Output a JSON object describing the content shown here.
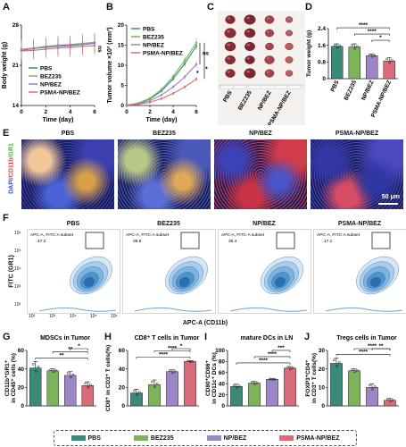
{
  "panel_letters": [
    "A",
    "B",
    "C",
    "D",
    "E",
    "F",
    "G",
    "H",
    "I",
    "J"
  ],
  "colors": {
    "PBS": "#3a8a79",
    "BEZ235": "#7cb35b",
    "NP/BEZ": "#9b86c6",
    "PSMA-NP/BEZ": "#d96b7b"
  },
  "groups": [
    "PBS",
    "BEZ235",
    "NP/BEZ",
    "PSMA-NP/BEZ"
  ],
  "chart_data": [
    {
      "panel": "A",
      "type": "line",
      "xlabel": "Time (day)",
      "ylabel": "Body weight (g)",
      "ylim": [
        14,
        28
      ],
      "yticks": [
        14,
        21,
        28
      ],
      "xticks": [
        0,
        2,
        4,
        6
      ],
      "x": [
        0,
        1,
        2,
        3,
        4,
        5,
        6
      ],
      "series": [
        {
          "name": "PBS",
          "values": [
            23.6,
            23.9,
            24.1,
            24.3,
            24.4,
            24.6,
            24.8
          ]
        },
        {
          "name": "BEZ235",
          "values": [
            23.8,
            24.0,
            24.3,
            24.5,
            24.6,
            24.8,
            25.0
          ]
        },
        {
          "name": "NP/BEZ",
          "values": [
            23.7,
            23.9,
            24.2,
            24.4,
            24.6,
            24.7,
            24.9
          ]
        },
        {
          "name": "PSMA-NP/BEZ",
          "values": [
            23.5,
            23.6,
            23.8,
            24.0,
            24.1,
            24.3,
            24.4
          ]
        }
      ],
      "annotations": [
        "ns"
      ]
    },
    {
      "panel": "B",
      "type": "line",
      "xlabel": "Time (day)",
      "ylabel": "Tumor volume ×10³ (mm³)",
      "ylim": [
        0,
        20
      ],
      "yticks": [
        0,
        5,
        10,
        15,
        20
      ],
      "xticks": [
        0,
        2,
        4,
        6
      ],
      "x": [
        0,
        1,
        2,
        3,
        4,
        5,
        6
      ],
      "series": [
        {
          "name": "PBS",
          "values": [
            0.1,
            0.5,
            1.6,
            3.6,
            6.6,
            10.4,
            14.8
          ]
        },
        {
          "name": "BEZ235",
          "values": [
            0.1,
            0.6,
            1.8,
            4.0,
            7.2,
            11.2,
            15.6
          ]
        },
        {
          "name": "NP/BEZ",
          "values": [
            0.1,
            0.4,
            1.2,
            2.6,
            4.6,
            7.1,
            10.2
          ]
        },
        {
          "name": "PSMA-NP/BEZ",
          "values": [
            0.1,
            0.3,
            0.8,
            1.7,
            3.0,
            4.6,
            6.6
          ]
        }
      ],
      "annotations": [
        "ns",
        "*",
        "*"
      ]
    },
    {
      "panel": "D",
      "type": "bar",
      "ylabel": "Tumor weight (g)",
      "ylim": [
        0,
        2.4
      ],
      "yticks": [
        0,
        0.8,
        1.6,
        2.4
      ],
      "categories": [
        "PBS",
        "BEZ235",
        "NP/BEZ",
        "PSMA-NP/BEZ"
      ],
      "values": [
        1.55,
        1.52,
        1.1,
        0.85
      ],
      "errors": [
        0.12,
        0.15,
        0.08,
        0.15
      ],
      "significance": [
        "****",
        "****",
        "*"
      ]
    },
    {
      "panel": "G",
      "type": "bar",
      "title": "MDSCs in Tumor",
      "ylabel": "CD11b⁺GR1⁺ in CD45⁺ cells (%)",
      "ylim": [
        0,
        60
      ],
      "yticks": [
        0,
        20,
        40,
        60
      ],
      "categories": [
        "PBS",
        "BEZ235",
        "NP/BEZ",
        "PSMA-NP/BEZ"
      ],
      "values": [
        41,
        38,
        33,
        22
      ],
      "errors": [
        7,
        2,
        4,
        4
      ],
      "significance": [
        "**",
        "**",
        "*"
      ]
    },
    {
      "panel": "H",
      "type": "bar",
      "title": "CD8⁺ T cells in Tumor",
      "ylabel": "CD8⁺ in CD3⁺ T cells(%)",
      "ylim": [
        0,
        60
      ],
      "yticks": [
        0,
        20,
        40,
        60
      ],
      "categories": [
        "PBS",
        "BEZ235",
        "NP/BEZ",
        "PSMA-NP/BEZ"
      ],
      "values": [
        14,
        23,
        37,
        48
      ],
      "errors": [
        4,
        5,
        2,
        1
      ],
      "significance": [
        "****",
        "****",
        "*"
      ]
    },
    {
      "panel": "I",
      "type": "bar",
      "title": "mature DCs in LN",
      "ylabel": "CD80⁺CD86⁺ in CD11c⁺ DCs (%)",
      "ylim": [
        0,
        100
      ],
      "yticks": [
        0,
        20,
        40,
        60,
        80,
        100
      ],
      "categories": [
        "PBS",
        "BEZ235",
        "NP/BEZ",
        "PSMA-NP/BEZ"
      ],
      "values": [
        35,
        41,
        48,
        68
      ],
      "errors": [
        4,
        3,
        1,
        3
      ],
      "significance": [
        "****",
        "****",
        "***"
      ]
    },
    {
      "panel": "J",
      "type": "bar",
      "title": "Tregs cells in Tumor",
      "ylabel": "FOXP3⁺CD4⁺ in CD3⁺ T cells(%)",
      "ylim": [
        0,
        30
      ],
      "yticks": [
        0,
        10,
        20,
        30
      ],
      "categories": [
        "PBS",
        "BEZ235",
        "NP/BEZ",
        "PSMA-NP/BEZ"
      ],
      "values": [
        23,
        19,
        10,
        3
      ],
      "errors": [
        3,
        1,
        2,
        1
      ],
      "significance": [
        "****",
        "****",
        "**"
      ]
    }
  ],
  "panel_c": {
    "groups": [
      "PBS",
      "BEZ235",
      "NP/BEZ",
      "PSMA-NP/BEZ"
    ],
    "rows": 5
  },
  "panel_e": {
    "groups": [
      "PBS",
      "BEZ235",
      "NP/BEZ",
      "PSMA-NP/BEZ"
    ],
    "side_label": "DAPI/CD11b/GR1",
    "side_parts": [
      {
        "text": "DAPI",
        "color": "#3b4bd6"
      },
      {
        "text": "/CD11b",
        "color": "#e23c3c"
      },
      {
        "text": "/GR1",
        "color": "#41b241"
      }
    ],
    "scale_bar": "50 μm"
  },
  "panel_f": {
    "groups": [
      "PBS",
      "BEZ235",
      "NP/BEZ",
      "PSMA-NP/BEZ"
    ],
    "gate_label": "APC-A, FITC-A subset",
    "percents": [
      "47.2",
      "38.5",
      "35.4",
      "17.1"
    ],
    "ylabel": "FITC (GR1)",
    "xlabel": "APC-A (CD11b)",
    "yticks": [
      "10⁶",
      "10⁵",
      "10⁴",
      "10³",
      "10²"
    ],
    "xticks": [
      "10²",
      "10³",
      "10⁴",
      "10⁵",
      "10⁶"
    ]
  },
  "legend": [
    "PBS",
    "BEZ235",
    "NP/BEZ",
    "PSMA-NP/BEZ"
  ]
}
